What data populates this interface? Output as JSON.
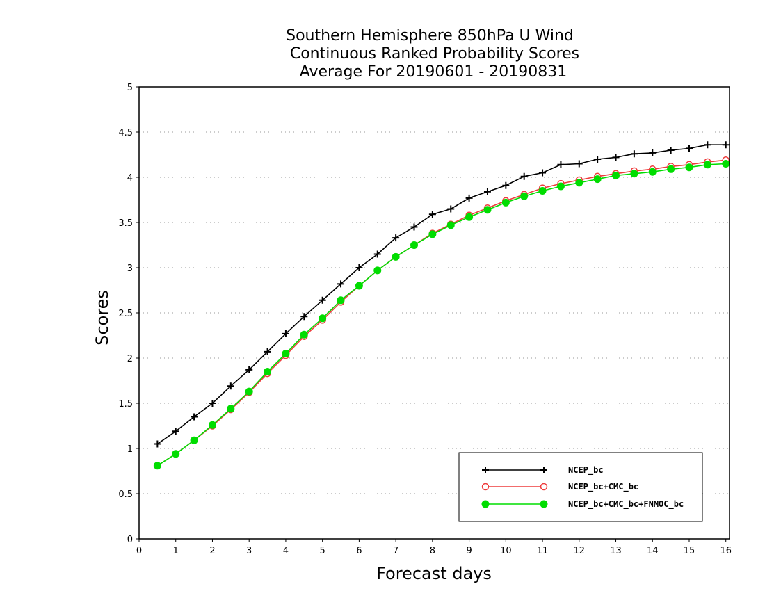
{
  "chart_data": {
    "type": "line",
    "title": [
      "Southern Hemisphere 850hPa U Wind",
      "Continuous Ranked Probability Scores",
      "Average For 20190601 - 20190831"
    ],
    "xlabel": "Forecast days",
    "ylabel": "Scores",
    "xlim": [
      0,
      16.1
    ],
    "ylim": [
      0,
      5
    ],
    "xticks": [
      "0",
      "1",
      "2",
      "3",
      "4",
      "5",
      "6",
      "7",
      "8",
      "9",
      "10",
      "11",
      "12",
      "13",
      "14",
      "15",
      "16"
    ],
    "yticks": [
      "0",
      "0.5",
      "1",
      "1.5",
      "2",
      "2.5",
      "3",
      "3.5",
      "4",
      "4.5",
      "5"
    ],
    "grid": "horizontal dotted",
    "legend_position": "lower-right",
    "x": [
      0.5,
      1,
      1.5,
      2,
      2.5,
      3,
      3.5,
      4,
      4.5,
      5,
      5.5,
      6,
      6.5,
      7,
      7.5,
      8,
      8.5,
      9,
      9.5,
      10,
      10.5,
      11,
      11.5,
      12,
      12.5,
      13,
      13.5,
      14,
      14.5,
      15,
      15.5,
      16
    ],
    "series": [
      {
        "name": "NCEP_bc",
        "color": "#000000",
        "marker": "plus",
        "values": [
          1.05,
          1.19,
          1.35,
          1.5,
          1.69,
          1.87,
          2.07,
          2.27,
          2.46,
          2.64,
          2.82,
          3.0,
          3.15,
          3.33,
          3.45,
          3.59,
          3.65,
          3.77,
          3.84,
          3.91,
          4.01,
          4.05,
          4.14,
          4.15,
          4.2,
          4.22,
          4.26,
          4.27,
          4.3,
          4.32,
          4.36,
          4.36
        ]
      },
      {
        "name": "NCEP_bc+CMC_bc",
        "color": "#ee3b3b",
        "marker": "open-circle",
        "values": [
          0.81,
          0.94,
          1.09,
          1.25,
          1.43,
          1.62,
          1.83,
          2.03,
          2.24,
          2.42,
          2.62,
          2.8,
          2.97,
          3.12,
          3.25,
          3.38,
          3.48,
          3.58,
          3.66,
          3.74,
          3.81,
          3.88,
          3.93,
          3.97,
          4.01,
          4.04,
          4.07,
          4.09,
          4.12,
          4.14,
          4.17,
          4.19
        ]
      },
      {
        "name": "NCEP_bc+CMC_bc+FNMOC_bc",
        "color": "#00dd00",
        "marker": "filled-circle",
        "values": [
          0.81,
          0.94,
          1.09,
          1.26,
          1.44,
          1.63,
          1.85,
          2.05,
          2.26,
          2.44,
          2.64,
          2.8,
          2.97,
          3.12,
          3.25,
          3.37,
          3.47,
          3.56,
          3.64,
          3.72,
          3.79,
          3.85,
          3.9,
          3.94,
          3.98,
          4.02,
          4.04,
          4.06,
          4.09,
          4.11,
          4.14,
          4.15
        ]
      }
    ]
  }
}
